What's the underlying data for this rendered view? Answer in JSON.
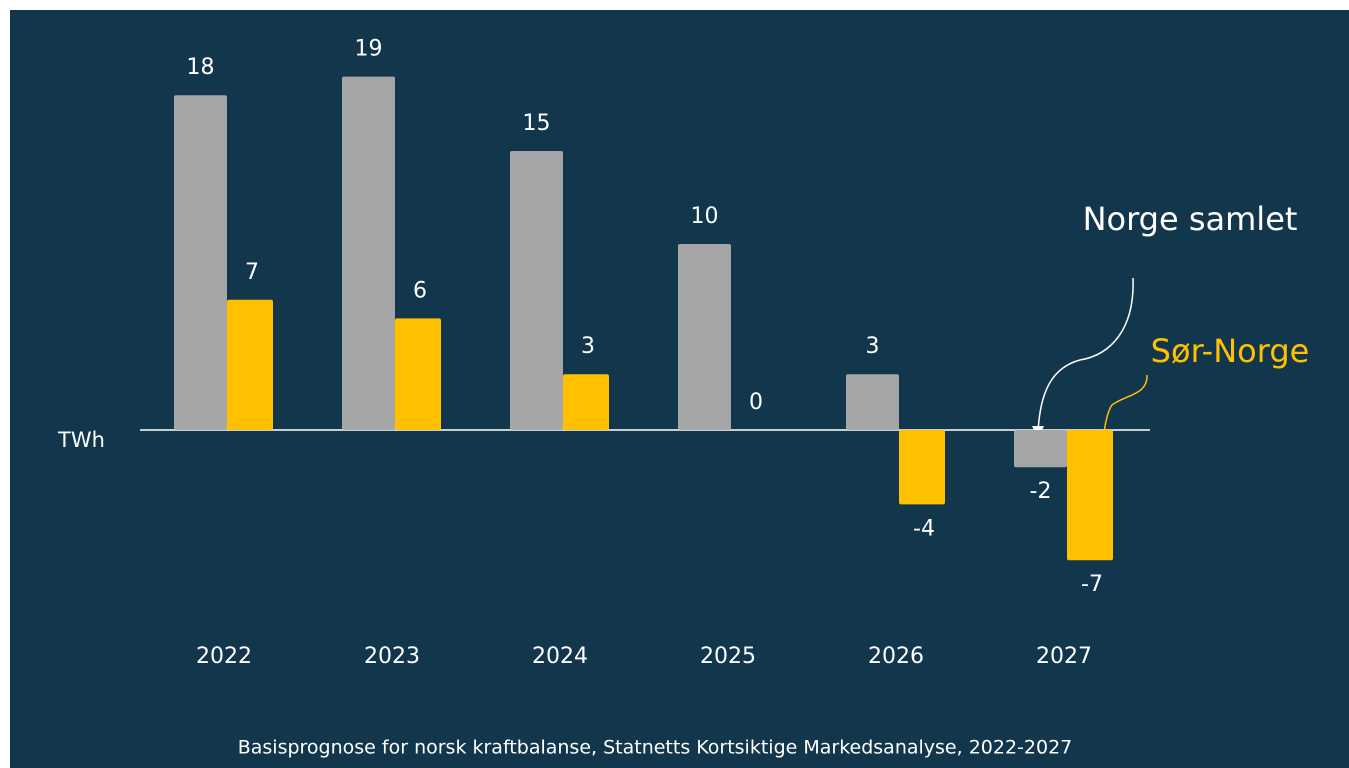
{
  "chart_data": {
    "type": "bar",
    "categories": [
      "2022",
      "2023",
      "2024",
      "2025",
      "2026",
      "2027"
    ],
    "series": [
      {
        "name": "Norge samlet",
        "color": "#a6a6a6",
        "values": [
          18,
          19,
          15,
          10,
          3,
          -2
        ]
      },
      {
        "name": "Sør-Norge",
        "color": "#ffc000",
        "values": [
          7,
          6,
          3,
          0,
          -4,
          -7
        ]
      }
    ],
    "y_label": "TWh",
    "caption": "Basisprognose for norsk kraftbalanse, Statnetts Kortsiktige Markedsanalyse, 2022-2027",
    "ylim": [
      -10,
      20
    ]
  }
}
